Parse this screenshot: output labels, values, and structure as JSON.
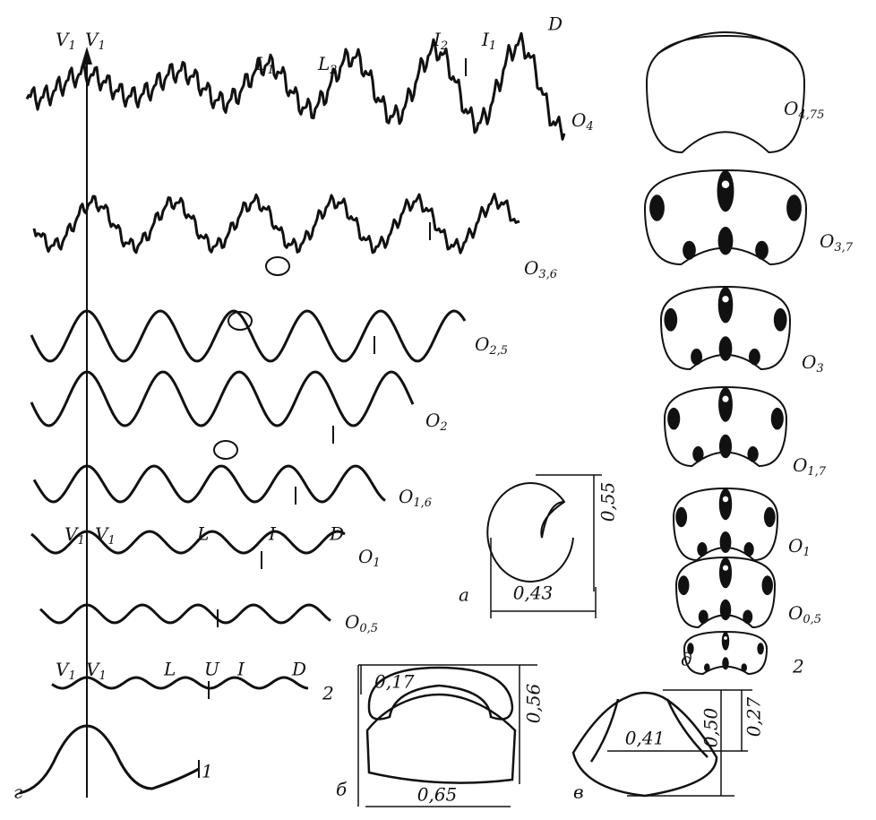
{
  "sutures": {
    "axis_top": [
      {
        "base": "V",
        "sub": "1"
      },
      {
        "base": "V",
        "sub": "1"
      }
    ],
    "top_lobes": [
      {
        "base": "L",
        "sub": "1"
      },
      {
        "base": "L",
        "sub": "2"
      },
      {
        "base": "I",
        "sub": "2"
      },
      {
        "base": "I",
        "sub": "1"
      },
      "D"
    ],
    "stages": [
      {
        "base": "O",
        "sub": "4"
      },
      {
        "base": "O",
        "sub": "3,6"
      },
      {
        "base": "O",
        "sub": "2,5"
      },
      {
        "base": "O",
        "sub": "2"
      },
      {
        "base": "O",
        "sub": "1,6"
      },
      {
        "base": "O",
        "sub": "1"
      },
      {
        "base": "O",
        "sub": "0,5"
      },
      "2",
      "1"
    ],
    "row_o1_labels": [
      {
        "base": "V",
        "sub": "1"
      },
      {
        "base": "V",
        "sub": "1"
      },
      "L",
      "I",
      "D"
    ],
    "row_2_labels": [
      {
        "base": "V",
        "sub": "1"
      },
      {
        "base": "V",
        "sub": "1"
      },
      "L",
      "U",
      "I",
      "D"
    ],
    "panel": "г"
  },
  "cross_sections": {
    "panel": "д",
    "stages": [
      {
        "base": "O",
        "sub": "4,75"
      },
      {
        "base": "O",
        "sub": "3,7"
      },
      {
        "base": "O",
        "sub": "3"
      },
      {
        "base": "O",
        "sub": "1,7"
      },
      {
        "base": "O",
        "sub": "1"
      },
      {
        "base": "O",
        "sub": "0,5"
      },
      "2"
    ]
  },
  "figure_a": {
    "panel": "а",
    "height": "0,55",
    "width": "0,43"
  },
  "figure_b": {
    "panel": "б",
    "inner": "0,17",
    "height": "0,56",
    "width": "0,65"
  },
  "figure_c": {
    "panel": "в",
    "width": "0,41",
    "height": "0,50",
    "inner": "0,27"
  }
}
